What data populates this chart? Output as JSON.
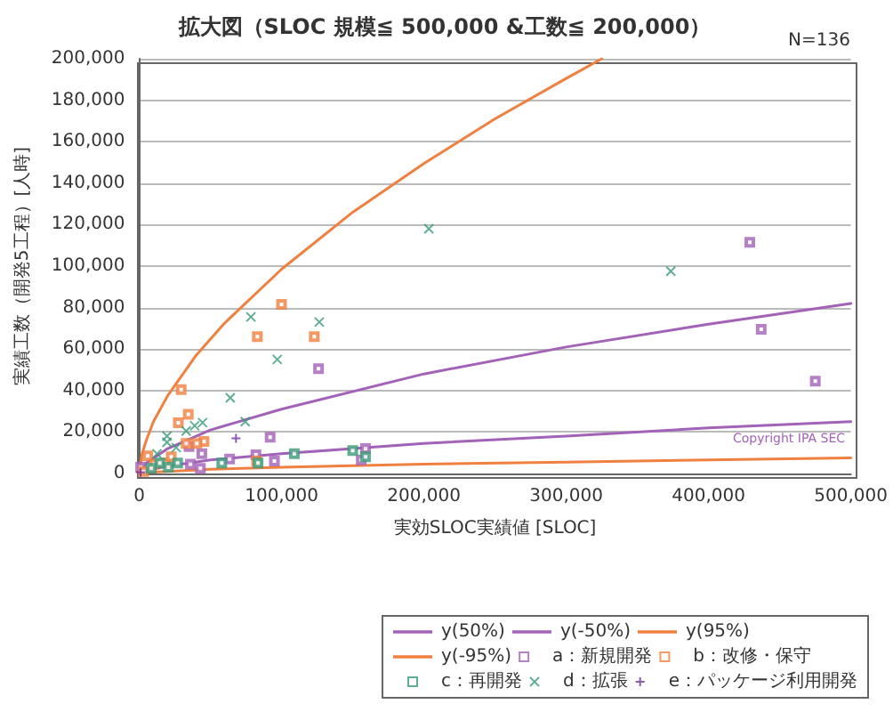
{
  "chart_data": {
    "type": "scatter",
    "title": "拡大図（SLOC 規模≦ 500,000 &工数≦ 200,000）",
    "xlabel": "実効SLOC実績値 [SLOC]",
    "ylabel": "実績工数（開発5工程）[人時]",
    "annotations": [
      "N=136",
      "Copyright IPA SEC"
    ],
    "xlim": [
      0,
      500000
    ],
    "xticks": [
      0,
      {
        "value": 100000,
        "label": "100,000"
      },
      {
        "value": 200000,
        "label": "200,000"
      },
      {
        "value": 300000,
        "label": "300,000"
      },
      {
        "value": 400000,
        "label": "400,000"
      },
      {
        "value": 500000,
        "label": "500,000"
      }
    ],
    "ylim": [
      0,
      200000
    ],
    "yticks": [
      0,
      {
        "value": 20000,
        "label": "20,000"
      },
      {
        "value": 40000,
        "label": "40,000"
      },
      {
        "value": 60000,
        "label": "60,000"
      },
      {
        "value": 80000,
        "label": "80,000"
      },
      {
        "value": 100000,
        "label": "100,000"
      },
      {
        "value": 120000,
        "label": "120,000"
      },
      {
        "value": 140000,
        "label": "140,000"
      },
      {
        "value": 160000,
        "label": "160,000"
      },
      {
        "value": 180000,
        "label": "180,000"
      },
      {
        "value": 200000,
        "label": "200,000"
      }
    ],
    "grid": "y",
    "legend": "bottom",
    "series": [
      {
        "name": "y(50%)",
        "type": "line",
        "marker": "none",
        "color": "#a262b8",
        "x": [
          0,
          5000,
          20000,
          50000,
          100000,
          200000,
          300000,
          400000,
          500000
        ],
        "values": [
          0,
          5000,
          12000,
          21000,
          31000,
          48000,
          61000,
          72000,
          82000
        ]
      },
      {
        "name": "y(-50%)",
        "type": "line",
        "marker": "none",
        "color": "#a262b8",
        "x": [
          0,
          5000,
          20000,
          50000,
          100000,
          200000,
          300000,
          400000,
          500000
        ],
        "values": [
          0,
          1500,
          3500,
          6500,
          9500,
          14500,
          18000,
          22000,
          25000
        ]
      },
      {
        "name": "y(95%)",
        "type": "line",
        "marker": "none",
        "color": "#f08040",
        "x": [
          0,
          2000,
          5000,
          10000,
          20000,
          40000,
          60000,
          100000,
          150000,
          200000,
          250000,
          300000,
          325000
        ],
        "values": [
          0,
          9500,
          16000,
          25000,
          37500,
          57000,
          72500,
          98500,
          126000,
          149500,
          171000,
          190500,
          200000
        ]
      },
      {
        "name": "y(-95%)",
        "type": "line",
        "marker": "none",
        "color": "#f08040",
        "x": [
          0,
          5000,
          20000,
          50000,
          100000,
          200000,
          300000,
          400000,
          500000
        ],
        "values": [
          0,
          500,
          1000,
          2000,
          3000,
          4500,
          5500,
          6500,
          7500
        ]
      },
      {
        "name": "a：新規開発",
        "marker": "square",
        "color": "#a262b8",
        "x": [
          429000,
          437000,
          475000,
          126000,
          92000,
          82000,
          95000,
          159000,
          156000,
          63500,
          44000,
          35000,
          43000,
          36000,
          1000
        ],
        "values": [
          111500,
          69500,
          44500,
          50500,
          17500,
          9000,
          6000,
          12000,
          6500,
          7000,
          9500,
          13000,
          2500,
          4500,
          3000
        ]
      },
      {
        "name": "b：改修・保守",
        "marker": "square",
        "color": "#f08040",
        "x": [
          100000,
          83000,
          123000,
          29500,
          34500,
          27500,
          45500,
          40500,
          33000,
          82500,
          6000,
          10500,
          18500,
          22500,
          3000
        ],
        "values": [
          81500,
          66000,
          66000,
          40500,
          28500,
          24500,
          15500,
          14500,
          14500,
          6000,
          8500,
          4500,
          5000,
          8000,
          1000
        ]
      },
      {
        "name": "c：再開発",
        "marker": "square",
        "color": "#3a9a78",
        "x": [
          109000,
          150000,
          159000,
          83500,
          58000,
          14500,
          20500,
          27000,
          8500
        ],
        "values": [
          9500,
          11000,
          8000,
          5000,
          5000,
          5000,
          3000,
          5000,
          2500
        ]
      },
      {
        "name": "d：拡張",
        "marker": "cross",
        "color": "#3a9a78",
        "x": [
          203500,
          373500,
          78500,
          126500,
          97000,
          64000,
          74500,
          44500,
          39000,
          33000,
          19500,
          19500,
          26000,
          12500
        ],
        "values": [
          118000,
          97500,
          75500,
          73000,
          55000,
          36500,
          25000,
          24500,
          23000,
          20500,
          15000,
          18000,
          12500,
          9500
        ]
      },
      {
        "name": "e：パッケージ利用開発",
        "marker": "plus",
        "color": "#7030a0",
        "x": [
          68000,
          1000
        ],
        "values": [
          17000,
          500
        ]
      }
    ]
  }
}
